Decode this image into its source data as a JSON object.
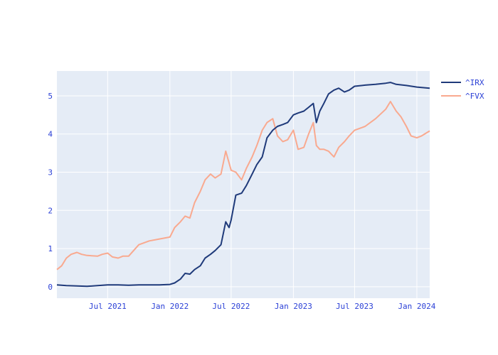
{
  "chart_data": {
    "type": "line",
    "title": "",
    "xlabel": "",
    "ylabel": "",
    "x_range": [
      "2021-02-01",
      "2024-02-08"
    ],
    "ylim": [
      -0.3,
      5.65
    ],
    "grid": true,
    "legend_placement": "top-right",
    "x_ticks": [
      {
        "date": "2021-07-01",
        "label": "Jul 2021"
      },
      {
        "date": "2022-01-01",
        "label": "Jan 2022"
      },
      {
        "date": "2022-07-01",
        "label": "Jul 2022"
      },
      {
        "date": "2023-01-01",
        "label": "Jan 2023"
      },
      {
        "date": "2023-07-01",
        "label": "Jul 2023"
      },
      {
        "date": "2024-01-01",
        "label": "Jan 2024"
      }
    ],
    "y_ticks": [
      {
        "value": 0,
        "label": "0"
      },
      {
        "value": 1,
        "label": "1"
      },
      {
        "value": 2,
        "label": "2"
      },
      {
        "value": 3,
        "label": "3"
      },
      {
        "value": 4,
        "label": "4"
      },
      {
        "value": 5,
        "label": "5"
      }
    ],
    "series": [
      {
        "name": "^IRX",
        "color": "#1f3a7a",
        "points": [
          [
            "2021-02-01",
            0.05
          ],
          [
            "2021-03-01",
            0.03
          ],
          [
            "2021-04-01",
            0.02
          ],
          [
            "2021-05-01",
            0.01
          ],
          [
            "2021-06-01",
            0.03
          ],
          [
            "2021-07-01",
            0.05
          ],
          [
            "2021-08-01",
            0.05
          ],
          [
            "2021-09-01",
            0.04
          ],
          [
            "2021-10-01",
            0.05
          ],
          [
            "2021-11-01",
            0.05
          ],
          [
            "2021-12-01",
            0.05
          ],
          [
            "2022-01-01",
            0.06
          ],
          [
            "2022-01-15",
            0.1
          ],
          [
            "2022-02-01",
            0.2
          ],
          [
            "2022-02-15",
            0.35
          ],
          [
            "2022-03-01",
            0.33
          ],
          [
            "2022-03-15",
            0.45
          ],
          [
            "2022-04-01",
            0.55
          ],
          [
            "2022-04-15",
            0.75
          ],
          [
            "2022-05-01",
            0.85
          ],
          [
            "2022-05-15",
            0.95
          ],
          [
            "2022-06-01",
            1.1
          ],
          [
            "2022-06-15",
            1.7
          ],
          [
            "2022-06-25",
            1.55
          ],
          [
            "2022-07-01",
            1.75
          ],
          [
            "2022-07-15",
            2.4
          ],
          [
            "2022-08-01",
            2.45
          ],
          [
            "2022-08-15",
            2.65
          ],
          [
            "2022-09-01",
            2.95
          ],
          [
            "2022-09-15",
            3.2
          ],
          [
            "2022-10-01",
            3.4
          ],
          [
            "2022-10-15",
            3.9
          ],
          [
            "2022-11-01",
            4.1
          ],
          [
            "2022-11-15",
            4.2
          ],
          [
            "2022-12-01",
            4.25
          ],
          [
            "2022-12-15",
            4.3
          ],
          [
            "2023-01-01",
            4.5
          ],
          [
            "2023-01-15",
            4.55
          ],
          [
            "2023-02-01",
            4.6
          ],
          [
            "2023-02-15",
            4.7
          ],
          [
            "2023-03-01",
            4.8
          ],
          [
            "2023-03-10",
            4.3
          ],
          [
            "2023-03-20",
            4.6
          ],
          [
            "2023-04-01",
            4.8
          ],
          [
            "2023-04-15",
            5.05
          ],
          [
            "2023-05-01",
            5.15
          ],
          [
            "2023-05-15",
            5.2
          ],
          [
            "2023-06-01",
            5.1
          ],
          [
            "2023-06-15",
            5.15
          ],
          [
            "2023-07-01",
            5.25
          ],
          [
            "2023-08-01",
            5.28
          ],
          [
            "2023-09-01",
            5.3
          ],
          [
            "2023-10-01",
            5.33
          ],
          [
            "2023-10-15",
            5.35
          ],
          [
            "2023-11-01",
            5.3
          ],
          [
            "2023-12-01",
            5.27
          ],
          [
            "2024-01-01",
            5.23
          ],
          [
            "2024-02-08",
            5.2
          ]
        ]
      },
      {
        "name": "^FVX",
        "color": "#f9a98f",
        "points": [
          [
            "2021-02-01",
            0.45
          ],
          [
            "2021-02-15",
            0.55
          ],
          [
            "2021-03-01",
            0.75
          ],
          [
            "2021-03-15",
            0.85
          ],
          [
            "2021-04-01",
            0.9
          ],
          [
            "2021-04-15",
            0.85
          ],
          [
            "2021-05-01",
            0.82
          ],
          [
            "2021-06-01",
            0.8
          ],
          [
            "2021-06-15",
            0.85
          ],
          [
            "2021-07-01",
            0.88
          ],
          [
            "2021-07-15",
            0.78
          ],
          [
            "2021-08-01",
            0.75
          ],
          [
            "2021-08-15",
            0.8
          ],
          [
            "2021-09-01",
            0.8
          ],
          [
            "2021-10-01",
            1.1
          ],
          [
            "2021-11-01",
            1.2
          ],
          [
            "2021-12-01",
            1.25
          ],
          [
            "2022-01-01",
            1.3
          ],
          [
            "2022-01-15",
            1.55
          ],
          [
            "2022-02-01",
            1.7
          ],
          [
            "2022-02-15",
            1.85
          ],
          [
            "2022-03-01",
            1.8
          ],
          [
            "2022-03-15",
            2.2
          ],
          [
            "2022-04-01",
            2.5
          ],
          [
            "2022-04-15",
            2.8
          ],
          [
            "2022-05-01",
            2.95
          ],
          [
            "2022-05-15",
            2.85
          ],
          [
            "2022-06-01",
            2.95
          ],
          [
            "2022-06-15",
            3.55
          ],
          [
            "2022-07-01",
            3.05
          ],
          [
            "2022-07-15",
            3.0
          ],
          [
            "2022-08-01",
            2.8
          ],
          [
            "2022-08-15",
            3.1
          ],
          [
            "2022-09-01",
            3.4
          ],
          [
            "2022-09-15",
            3.7
          ],
          [
            "2022-10-01",
            4.1
          ],
          [
            "2022-10-15",
            4.3
          ],
          [
            "2022-11-01",
            4.4
          ],
          [
            "2022-11-15",
            3.95
          ],
          [
            "2022-12-01",
            3.8
          ],
          [
            "2022-12-15",
            3.85
          ],
          [
            "2023-01-01",
            4.1
          ],
          [
            "2023-01-15",
            3.6
          ],
          [
            "2023-02-01",
            3.65
          ],
          [
            "2023-02-15",
            4.0
          ],
          [
            "2023-03-01",
            4.3
          ],
          [
            "2023-03-10",
            3.7
          ],
          [
            "2023-03-20",
            3.6
          ],
          [
            "2023-04-01",
            3.6
          ],
          [
            "2023-04-15",
            3.55
          ],
          [
            "2023-05-01",
            3.4
          ],
          [
            "2023-05-15",
            3.65
          ],
          [
            "2023-06-01",
            3.8
          ],
          [
            "2023-06-15",
            3.95
          ],
          [
            "2023-07-01",
            4.1
          ],
          [
            "2023-08-01",
            4.2
          ],
          [
            "2023-09-01",
            4.4
          ],
          [
            "2023-10-01",
            4.65
          ],
          [
            "2023-10-15",
            4.85
          ],
          [
            "2023-11-01",
            4.6
          ],
          [
            "2023-11-15",
            4.45
          ],
          [
            "2023-12-01",
            4.2
          ],
          [
            "2023-12-15",
            3.95
          ],
          [
            "2024-01-01",
            3.9
          ],
          [
            "2024-01-15",
            3.95
          ],
          [
            "2024-02-08",
            4.08
          ]
        ]
      }
    ]
  }
}
